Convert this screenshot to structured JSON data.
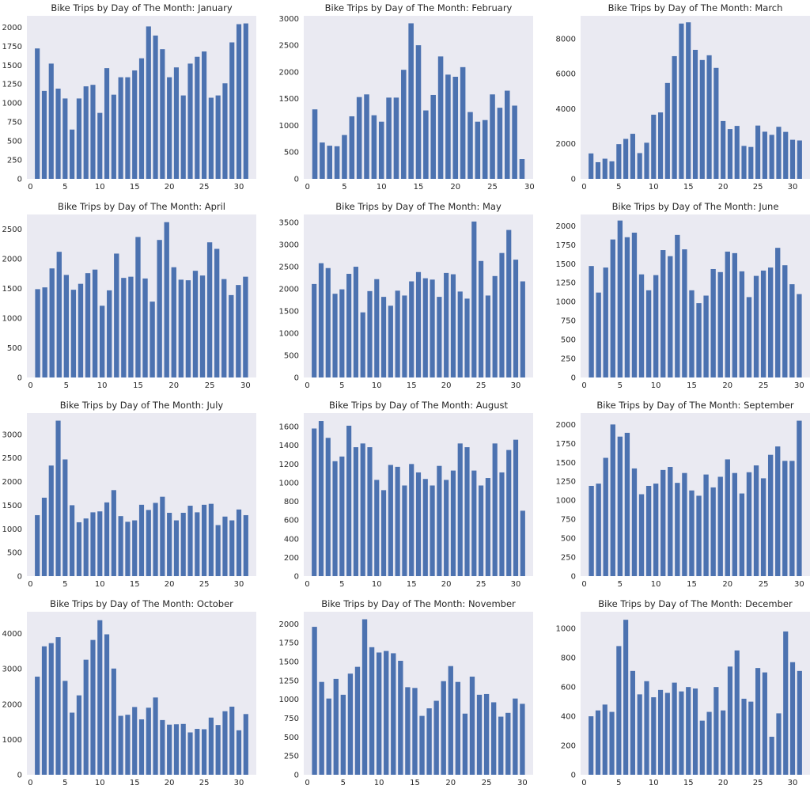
{
  "chart_data": [
    {
      "type": "bar",
      "title": "Bike Trips by Day of The Month: January",
      "x_ticks": [
        0,
        5,
        10,
        15,
        20,
        25,
        30
      ],
      "y_ticks": [
        0,
        250,
        500,
        750,
        1000,
        1250,
        1500,
        1750,
        2000
      ],
      "xlim": [
        -0.5,
        32.5
      ],
      "ylim": [
        0,
        2150
      ],
      "color": "#4c72b0",
      "grid": false,
      "categories": [
        1,
        2,
        3,
        4,
        5,
        6,
        7,
        8,
        9,
        10,
        11,
        12,
        13,
        14,
        15,
        16,
        17,
        18,
        19,
        20,
        21,
        22,
        23,
        24,
        25,
        26,
        27,
        28,
        29,
        30,
        31
      ],
      "values": [
        1720,
        1160,
        1520,
        1190,
        1060,
        650,
        1060,
        1220,
        1240,
        870,
        1460,
        1110,
        1340,
        1340,
        1430,
        1590,
        2010,
        1890,
        1710,
        1340,
        1470,
        1100,
        1520,
        1610,
        1680,
        1070,
        1100,
        1260,
        1800,
        2040,
        2050
      ]
    },
    {
      "type": "bar",
      "title": "Bike Trips by Day of The Month: February",
      "x_ticks": [
        0,
        5,
        10,
        15,
        20,
        25,
        30
      ],
      "y_ticks": [
        0,
        500,
        1000,
        1500,
        2000,
        2500,
        3000
      ],
      "xlim": [
        -0.5,
        30.5
      ],
      "ylim": [
        0,
        3050
      ],
      "color": "#4c72b0",
      "grid": false,
      "categories": [
        1,
        2,
        3,
        4,
        5,
        6,
        7,
        8,
        9,
        10,
        11,
        12,
        13,
        14,
        15,
        16,
        17,
        18,
        19,
        20,
        21,
        22,
        23,
        24,
        25,
        26,
        27,
        28,
        29
      ],
      "values": [
        1300,
        680,
        620,
        610,
        820,
        1170,
        1530,
        1580,
        1190,
        1070,
        1520,
        1520,
        2040,
        2910,
        2500,
        1280,
        1570,
        2290,
        1950,
        1910,
        2090,
        1250,
        1070,
        1100,
        1580,
        1330,
        1650,
        1370,
        370
      ]
    },
    {
      "type": "bar",
      "title": "Bike Trips by Day of The Month: March",
      "x_ticks": [
        0,
        5,
        10,
        15,
        20,
        25,
        30
      ],
      "y_ticks": [
        0,
        2000,
        4000,
        6000,
        8000
      ],
      "xlim": [
        -0.5,
        32.5
      ],
      "ylim": [
        0,
        9300
      ],
      "color": "#4c72b0",
      "grid": false,
      "categories": [
        1,
        2,
        3,
        4,
        5,
        6,
        7,
        8,
        9,
        10,
        11,
        12,
        13,
        14,
        15,
        16,
        17,
        18,
        19,
        20,
        21,
        22,
        23,
        24,
        25,
        26,
        27,
        28,
        29,
        30,
        31
      ],
      "values": [
        1450,
        950,
        1150,
        1000,
        1980,
        2280,
        2570,
        1470,
        2060,
        3660,
        3790,
        5470,
        7000,
        8860,
        8930,
        7360,
        6780,
        7050,
        6330,
        3300,
        2840,
        3020,
        1880,
        1820,
        3040,
        2690,
        2510,
        2970,
        2680,
        2230,
        2190
      ]
    },
    {
      "type": "bar",
      "title": "Bike Trips by Day of The Month: April",
      "x_ticks": [
        0,
        5,
        10,
        15,
        20,
        25,
        30
      ],
      "y_ticks": [
        0,
        500,
        1000,
        1500,
        2000,
        2500
      ],
      "xlim": [
        -0.5,
        31.5
      ],
      "ylim": [
        0,
        2750
      ],
      "color": "#4c72b0",
      "grid": false,
      "categories": [
        1,
        2,
        3,
        4,
        5,
        6,
        7,
        8,
        9,
        10,
        11,
        12,
        13,
        14,
        15,
        16,
        17,
        18,
        19,
        20,
        21,
        22,
        23,
        24,
        25,
        26,
        27,
        28,
        29,
        30
      ],
      "values": [
        1490,
        1520,
        1840,
        2120,
        1730,
        1480,
        1580,
        1760,
        1820,
        1210,
        1470,
        2090,
        1680,
        1700,
        2370,
        1670,
        1280,
        2320,
        2620,
        1860,
        1650,
        1640,
        1800,
        1720,
        2280,
        2170,
        1660,
        1390,
        1560,
        1700
      ]
    },
    {
      "type": "bar",
      "title": "Bike Trips by Day of The Month: May",
      "x_ticks": [
        0,
        5,
        10,
        15,
        20,
        25,
        30
      ],
      "y_ticks": [
        0,
        500,
        1000,
        1500,
        2000,
        2500,
        3000,
        3500
      ],
      "xlim": [
        -0.5,
        32.5
      ],
      "ylim": [
        0,
        3680
      ],
      "color": "#4c72b0",
      "grid": false,
      "categories": [
        1,
        2,
        3,
        4,
        5,
        6,
        7,
        8,
        9,
        10,
        11,
        12,
        13,
        14,
        15,
        16,
        17,
        18,
        19,
        20,
        21,
        22,
        23,
        24,
        25,
        26,
        27,
        28,
        29,
        30,
        31
      ],
      "values": [
        2110,
        2580,
        2470,
        1890,
        1990,
        2340,
        2500,
        1470,
        1950,
        2220,
        1820,
        1620,
        1960,
        1850,
        2170,
        2380,
        2240,
        2210,
        1820,
        2360,
        2330,
        1940,
        1780,
        3520,
        2630,
        1850,
        2290,
        2810,
        3330,
        2660,
        2170
      ]
    },
    {
      "type": "bar",
      "title": "Bike Trips by Day of The Month: June",
      "x_ticks": [
        0,
        5,
        10,
        15,
        20,
        25,
        30
      ],
      "y_ticks": [
        0,
        250,
        500,
        750,
        1000,
        1250,
        1500,
        1750,
        2000
      ],
      "xlim": [
        -0.5,
        31.5
      ],
      "ylim": [
        0,
        2150
      ],
      "color": "#4c72b0",
      "grid": false,
      "categories": [
        1,
        2,
        3,
        4,
        5,
        6,
        7,
        8,
        9,
        10,
        11,
        12,
        13,
        14,
        15,
        16,
        17,
        18,
        19,
        20,
        21,
        22,
        23,
        24,
        25,
        26,
        27,
        28,
        29,
        30
      ],
      "values": [
        1470,
        1120,
        1450,
        1820,
        2070,
        1850,
        1910,
        1360,
        1150,
        1350,
        1680,
        1600,
        1880,
        1690,
        1150,
        980,
        1080,
        1430,
        1390,
        1660,
        1640,
        1400,
        1060,
        1340,
        1410,
        1450,
        1710,
        1480,
        1230,
        1100
      ]
    },
    {
      "type": "bar",
      "title": "Bike Trips by Day of The Month: July",
      "x_ticks": [
        0,
        5,
        10,
        15,
        20,
        25,
        30
      ],
      "y_ticks": [
        0,
        500,
        1000,
        1500,
        2000,
        2500,
        3000
      ],
      "xlim": [
        -0.5,
        32.5
      ],
      "ylim": [
        0,
        3450
      ],
      "color": "#4c72b0",
      "grid": false,
      "categories": [
        1,
        2,
        3,
        4,
        5,
        6,
        7,
        8,
        9,
        10,
        11,
        12,
        13,
        14,
        15,
        16,
        17,
        18,
        19,
        20,
        21,
        22,
        23,
        24,
        25,
        26,
        27,
        28,
        29,
        30,
        31
      ],
      "values": [
        1290,
        1660,
        2340,
        3290,
        2470,
        1500,
        1140,
        1220,
        1350,
        1370,
        1560,
        1820,
        1270,
        1150,
        1180,
        1510,
        1400,
        1550,
        1680,
        1340,
        1180,
        1340,
        1490,
        1350,
        1510,
        1530,
        1080,
        1260,
        1180,
        1410,
        1290
      ]
    },
    {
      "type": "bar",
      "title": "Bike Trips by Day of The Month: August",
      "x_ticks": [
        0,
        5,
        10,
        15,
        20,
        25,
        30
      ],
      "y_ticks": [
        0,
        200,
        400,
        600,
        800,
        1000,
        1200,
        1400,
        1600
      ],
      "xlim": [
        -0.5,
        32.5
      ],
      "ylim": [
        0,
        1745
      ],
      "color": "#4c72b0",
      "grid": false,
      "categories": [
        1,
        2,
        3,
        4,
        5,
        6,
        7,
        8,
        9,
        10,
        11,
        12,
        13,
        14,
        15,
        16,
        17,
        18,
        19,
        20,
        21,
        22,
        23,
        24,
        25,
        26,
        27,
        28,
        29,
        30,
        31
      ],
      "values": [
        1580,
        1660,
        1480,
        1230,
        1280,
        1610,
        1380,
        1420,
        1380,
        1030,
        920,
        1190,
        1170,
        970,
        1200,
        1110,
        1040,
        970,
        1180,
        1030,
        1130,
        1420,
        1380,
        1130,
        970,
        1050,
        1420,
        1110,
        1350,
        1460,
        700
      ]
    },
    {
      "type": "bar",
      "title": "Bike Trips by Day of The Month: September",
      "x_ticks": [
        0,
        5,
        10,
        15,
        20,
        25,
        30
      ],
      "y_ticks": [
        0,
        250,
        500,
        750,
        1000,
        1250,
        1500,
        1750,
        2000
      ],
      "xlim": [
        -0.5,
        31.5
      ],
      "ylim": [
        0,
        2150
      ],
      "color": "#4c72b0",
      "grid": false,
      "categories": [
        1,
        2,
        3,
        4,
        5,
        6,
        7,
        8,
        9,
        10,
        11,
        12,
        13,
        14,
        15,
        16,
        17,
        18,
        19,
        20,
        21,
        22,
        23,
        24,
        25,
        26,
        27,
        28,
        29,
        30
      ],
      "values": [
        1190,
        1220,
        1560,
        2000,
        1840,
        1890,
        1420,
        1080,
        1190,
        1220,
        1400,
        1440,
        1230,
        1360,
        1130,
        1060,
        1340,
        1170,
        1310,
        1540,
        1360,
        1090,
        1370,
        1460,
        1290,
        1600,
        1710,
        1520,
        1520,
        2050
      ]
    },
    {
      "type": "bar",
      "title": "Bike Trips by Day of The Month: October",
      "x_ticks": [
        0,
        5,
        10,
        15,
        20,
        25,
        30
      ],
      "y_ticks": [
        0,
        1000,
        2000,
        3000,
        4000
      ],
      "xlim": [
        -0.5,
        32.5
      ],
      "ylim": [
        0,
        4620
      ],
      "color": "#4c72b0",
      "grid": false,
      "categories": [
        1,
        2,
        3,
        4,
        5,
        6,
        7,
        8,
        9,
        10,
        11,
        12,
        13,
        14,
        15,
        16,
        17,
        18,
        19,
        20,
        21,
        22,
        23,
        24,
        25,
        26,
        27,
        28,
        29,
        30,
        31
      ],
      "values": [
        2780,
        3640,
        3730,
        3900,
        2660,
        1760,
        2250,
        3260,
        3820,
        4380,
        3980,
        3010,
        1670,
        1700,
        1920,
        1570,
        1900,
        2190,
        1550,
        1420,
        1430,
        1440,
        1200,
        1300,
        1290,
        1620,
        1410,
        1800,
        1930,
        1260,
        1720
      ]
    },
    {
      "type": "bar",
      "title": "Bike Trips by Day of The Month: November",
      "x_ticks": [
        0,
        5,
        10,
        15,
        20,
        25,
        30
      ],
      "y_ticks": [
        0,
        250,
        500,
        750,
        1000,
        1250,
        1500,
        1750,
        2000
      ],
      "xlim": [
        -0.5,
        31.5
      ],
      "ylim": [
        0,
        2160
      ],
      "color": "#4c72b0",
      "grid": false,
      "categories": [
        1,
        2,
        3,
        4,
        5,
        6,
        7,
        8,
        9,
        10,
        11,
        12,
        13,
        14,
        15,
        16,
        17,
        18,
        19,
        20,
        21,
        22,
        23,
        24,
        25,
        26,
        27,
        28,
        29,
        30
      ],
      "values": [
        1960,
        1230,
        1010,
        1270,
        1060,
        1340,
        1430,
        2060,
        1690,
        1620,
        1640,
        1610,
        1510,
        1160,
        1150,
        780,
        880,
        980,
        1240,
        1440,
        1230,
        810,
        1300,
        1060,
        1070,
        960,
        770,
        820,
        1010,
        940
      ]
    },
    {
      "type": "bar",
      "title": "Bike Trips by Day of The Month: December",
      "x_ticks": [
        0,
        5,
        10,
        15,
        20,
        25,
        30
      ],
      "y_ticks": [
        0,
        200,
        400,
        600,
        800,
        1000
      ],
      "xlim": [
        -0.5,
        32.5
      ],
      "ylim": [
        0,
        1115
      ],
      "color": "#4c72b0",
      "grid": false,
      "categories": [
        1,
        2,
        3,
        4,
        5,
        6,
        7,
        8,
        9,
        10,
        11,
        12,
        13,
        14,
        15,
        16,
        17,
        18,
        19,
        20,
        21,
        22,
        23,
        24,
        25,
        26,
        27,
        28,
        29,
        30,
        31
      ],
      "values": [
        400,
        440,
        480,
        430,
        880,
        1060,
        710,
        550,
        640,
        530,
        580,
        560,
        630,
        570,
        600,
        590,
        370,
        430,
        600,
        440,
        740,
        850,
        520,
        500,
        730,
        700,
        260,
        420,
        980,
        770,
        710
      ]
    }
  ]
}
